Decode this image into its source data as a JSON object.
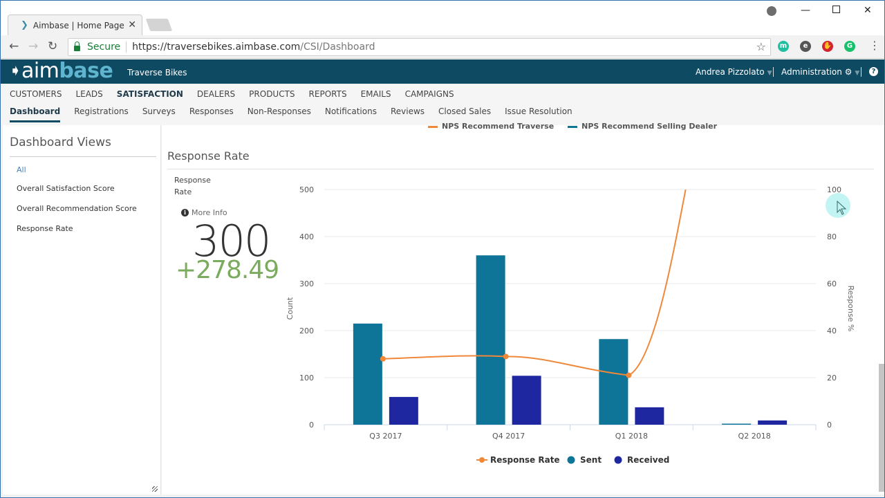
{
  "browser": {
    "tab_title": "Aimbase | Home Page",
    "secure_label": "Secure",
    "url_host": "https://traversebikes.aimbase.com",
    "url_path": "/CSI/Dashboard",
    "extensions": [
      {
        "name": "m",
        "color": "#1fbf9f"
      },
      {
        "name": "evernote",
        "color": "#555555"
      },
      {
        "name": "adblock",
        "color": "#d3252f"
      },
      {
        "name": "G",
        "color": "#15c26b"
      }
    ]
  },
  "app": {
    "logo_aim": "aim",
    "logo_base": "base",
    "company": "Traverse Bikes",
    "user": "Andrea Pizzolato",
    "admin": "Administration"
  },
  "nav": {
    "primary": [
      "CUSTOMERS",
      "LEADS",
      "SATISFACTION",
      "DEALERS",
      "PRODUCTS",
      "REPORTS",
      "EMAILS",
      "CAMPAIGNS"
    ],
    "primary_active": "SATISFACTION",
    "secondary": [
      "Dashboard",
      "Registrations",
      "Surveys",
      "Responses",
      "Non-Responses",
      "Notifications",
      "Reviews",
      "Closed Sales",
      "Issue Resolution"
    ],
    "secondary_active": "Dashboard"
  },
  "sidebar": {
    "title": "Dashboard Views",
    "items": [
      "All",
      "Overall Satisfaction Score",
      "Overall Recommendation Score",
      "Response Rate"
    ],
    "selected": "All"
  },
  "previous_chart_legend": [
    {
      "label": "NPS Recommend Traverse",
      "color": "#f0883a"
    },
    {
      "label": "NPS Recommend Selling Dealer",
      "color": "#0e7498"
    }
  ],
  "section": {
    "title": "Response Rate",
    "kpi_label": "Response Rate",
    "more_info": "More Info",
    "kpi_value": "300",
    "kpi_delta": "+278.49"
  },
  "colors": {
    "sent": "#0e7498",
    "received": "#1f27a0",
    "response_rate": "#f0883a",
    "delta_green": "#7aab5e",
    "header_bg": "#0f4a63"
  },
  "chart_data": {
    "type": "bar",
    "title": "Response Rate",
    "categories": [
      "Q3 2017",
      "Q4 2017",
      "Q1 2018",
      "Q2 2018"
    ],
    "series": [
      {
        "name": "Sent",
        "type": "bar",
        "axis": "left",
        "values": [
          215,
          360,
          182,
          2
        ]
      },
      {
        "name": "Received",
        "type": "bar",
        "axis": "left",
        "values": [
          59,
          104,
          37,
          9
        ]
      },
      {
        "name": "Response Rate",
        "type": "line",
        "axis": "right",
        "values": [
          28,
          29,
          21,
          450
        ]
      }
    ],
    "ylabel": "Count",
    "ylim": [
      0,
      500
    ],
    "yticks": [
      0,
      100,
      200,
      300,
      400,
      500
    ],
    "y2label": "Response %",
    "y2lim": [
      0,
      100
    ],
    "y2ticks": [
      0,
      20,
      40,
      60,
      80,
      100
    ],
    "legend": [
      "Response Rate",
      "Sent",
      "Received"
    ],
    "legend_position": "bottom",
    "grid": true
  }
}
